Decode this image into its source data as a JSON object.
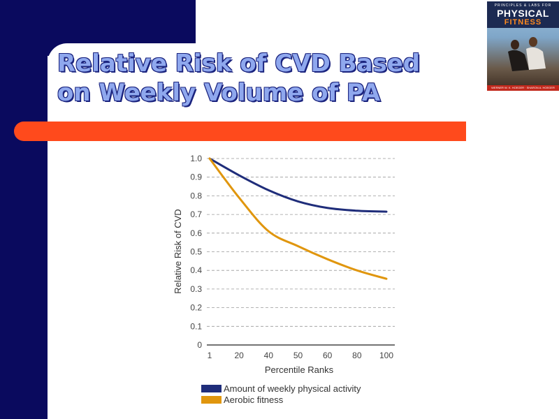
{
  "slide": {
    "title": "Relative Risk of CVD Based\non Weekly Volume of PA",
    "colors": {
      "navy": "#0a0a5e",
      "orange": "#ff4a1c",
      "title_fill": "#8fa8ee",
      "title_outline": "#1a237e"
    }
  },
  "book_cover": {
    "subtitle": "PRINCIPLES & LABS FOR",
    "title_line1": "PHYSICAL",
    "title_line2": "FITNESS",
    "authors": "WERNER W. K. HOEGER · SHARON A. HOEGER",
    "icon": "book-cover-photo"
  },
  "chart_data": {
    "type": "line",
    "xlabel": "Percentile Ranks",
    "ylabel": "Relative Risk of CVD",
    "x_categories": [
      "1",
      "20",
      "40",
      "50",
      "60",
      "80",
      "100"
    ],
    "y_ticks": [
      "0",
      "0.1",
      "0.2",
      "0.3",
      "0.4",
      "0.5",
      "0.6",
      "0.7",
      "0.8",
      "0.9",
      "1.0"
    ],
    "ylim": [
      0,
      1.0
    ],
    "grid": "horizontal dashed",
    "legend_position": "bottom",
    "series": [
      {
        "name": "Amount of weekly physical activity",
        "color": "#1f2d7a",
        "values": [
          1.0,
          0.91,
          0.83,
          0.77,
          0.735,
          0.72,
          0.715
        ]
      },
      {
        "name": "Aerobic fitness",
        "color": "#e0960e",
        "values": [
          1.0,
          0.79,
          0.61,
          0.53,
          0.46,
          0.4,
          0.355
        ]
      }
    ]
  }
}
